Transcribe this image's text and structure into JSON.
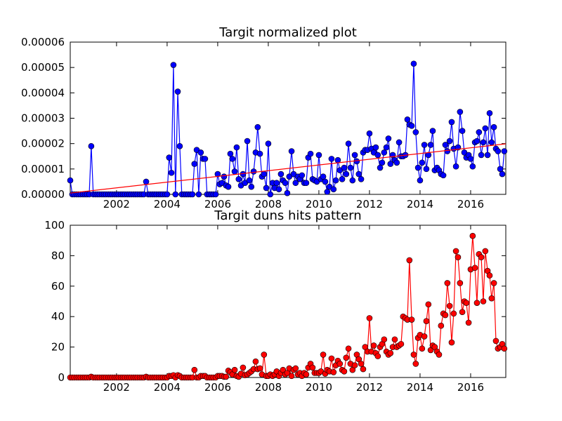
{
  "chart_data": [
    {
      "type": "line",
      "title": "Targit normalized plot",
      "color": "#0000ff",
      "xlim": [
        2000.17,
        2017.39
      ],
      "xticks": [
        2002,
        2004,
        2006,
        2008,
        2010,
        2012,
        2014,
        2016
      ],
      "ylim": [
        0,
        6e-05
      ],
      "yticks": [
        {
          "value": 0,
          "label": "0.00000"
        },
        {
          "value": 1e-05,
          "label": "0.00001"
        },
        {
          "value": 2e-05,
          "label": "0.00002"
        },
        {
          "value": 3e-05,
          "label": "0.00003"
        },
        {
          "value": 4e-05,
          "label": "0.00004"
        },
        {
          "value": 5e-05,
          "label": "0.00005"
        },
        {
          "value": 6e-05,
          "label": "0.00006"
        }
      ],
      "x": [
        2000.17,
        2000.25,
        2000.33,
        2000.42,
        2000.5,
        2000.58,
        2000.67,
        2000.75,
        2000.83,
        2000.92,
        2001,
        2001.08,
        2001.17,
        2001.25,
        2001.33,
        2001.42,
        2001.5,
        2001.58,
        2001.67,
        2001.75,
        2001.83,
        2001.92,
        2002,
        2002.08,
        2002.17,
        2002.25,
        2002.33,
        2002.42,
        2002.5,
        2002.58,
        2002.67,
        2002.75,
        2002.83,
        2002.92,
        2003,
        2003.08,
        2003.17,
        2003.25,
        2003.33,
        2003.42,
        2003.5,
        2003.58,
        2003.67,
        2003.75,
        2003.83,
        2003.92,
        2004,
        2004.08,
        2004.17,
        2004.25,
        2004.33,
        2004.42,
        2004.5,
        2004.58,
        2004.67,
        2004.75,
        2004.83,
        2004.92,
        2005,
        2005.08,
        2005.17,
        2005.25,
        2005.33,
        2005.42,
        2005.5,
        2005.58,
        2005.67,
        2005.75,
        2005.83,
        2005.92,
        2006,
        2006.08,
        2006.17,
        2006.25,
        2006.33,
        2006.42,
        2006.5,
        2006.58,
        2006.67,
        2006.75,
        2006.83,
        2006.92,
        2007,
        2007.08,
        2007.17,
        2007.25,
        2007.33,
        2007.42,
        2007.5,
        2007.58,
        2007.67,
        2007.75,
        2007.83,
        2007.92,
        2008,
        2008.08,
        2008.17,
        2008.25,
        2008.33,
        2008.42,
        2008.5,
        2008.58,
        2008.67,
        2008.75,
        2008.83,
        2008.92,
        2009,
        2009.08,
        2009.17,
        2009.25,
        2009.33,
        2009.42,
        2009.5,
        2009.58,
        2009.67,
        2009.75,
        2009.83,
        2009.92,
        2010,
        2010.08,
        2010.17,
        2010.25,
        2010.33,
        2010.42,
        2010.5,
        2010.58,
        2010.67,
        2010.75,
        2010.83,
        2010.92,
        2011,
        2011.08,
        2011.17,
        2011.25,
        2011.33,
        2011.42,
        2011.5,
        2011.58,
        2011.67,
        2011.75,
        2011.83,
        2011.92,
        2012,
        2012.08,
        2012.17,
        2012.25,
        2012.33,
        2012.42,
        2012.5,
        2012.58,
        2012.67,
        2012.75,
        2012.83,
        2012.92,
        2013,
        2013.08,
        2013.17,
        2013.25,
        2013.33,
        2013.42,
        2013.5,
        2013.58,
        2013.67,
        2013.75,
        2013.83,
        2013.92,
        2014,
        2014.08,
        2014.17,
        2014.25,
        2014.33,
        2014.42,
        2014.5,
        2014.58,
        2014.67,
        2014.75,
        2014.83,
        2014.92,
        2015,
        2015.08,
        2015.17,
        2015.25,
        2015.33,
        2015.42,
        2015.5,
        2015.58,
        2015.67,
        2015.75,
        2015.83,
        2015.92,
        2016,
        2016.08,
        2016.17,
        2016.25,
        2016.33,
        2016.42,
        2016.5,
        2016.58,
        2016.67,
        2016.75,
        2016.83,
        2016.92,
        2017,
        2017.08,
        2017.17,
        2017.25,
        2017.33
      ],
      "values": [
        5.5e-06,
        0,
        0,
        0,
        0,
        0,
        0,
        0,
        0,
        0,
        1.9e-05,
        0,
        0,
        0,
        0,
        0,
        0,
        0,
        0,
        0,
        0,
        0,
        0,
        0,
        0,
        0,
        0,
        0,
        0,
        0,
        0,
        0,
        0,
        0,
        0,
        0,
        5e-06,
        0,
        0,
        0,
        0,
        0,
        0,
        0,
        0,
        0,
        0,
        1.45e-05,
        8.5e-06,
        5.1e-05,
        0,
        4.05e-05,
        1.9e-05,
        0,
        0,
        0,
        0,
        0,
        0,
        1.2e-05,
        1.75e-05,
        0,
        1.65e-05,
        1.4e-05,
        1.4e-05,
        0,
        0,
        0,
        0,
        0,
        8e-06,
        4e-06,
        4.5e-06,
        7e-06,
        3.5e-06,
        3e-06,
        1.6e-05,
        1.4e-05,
        9e-06,
        1.85e-05,
        6e-06,
        3.5e-06,
        8e-06,
        4.5e-06,
        2.1e-05,
        5.5e-06,
        3e-06,
        9e-06,
        1.65e-05,
        2.65e-05,
        1.6e-05,
        7e-06,
        8e-06,
        2.5e-06,
        2e-05,
        0,
        4.5e-06,
        2.5e-06,
        4.5e-06,
        2e-06,
        8e-06,
        5.5e-06,
        4.5e-06,
        5e-07,
        7e-06,
        1.7e-05,
        8e-06,
        4.5e-06,
        7e-06,
        6e-06,
        7.5e-06,
        4.5e-06,
        4.5e-06,
        1.45e-05,
        1.6e-05,
        6e-06,
        5.5e-06,
        5e-06,
        1.55e-05,
        6e-06,
        7e-06,
        5e-06,
        1e-06,
        3e-06,
        1.4e-05,
        2e-06,
        5.5e-06,
        1.35e-05,
        9.5e-06,
        6e-06,
        1.05e-05,
        8e-06,
        2e-05,
        1.05e-05,
        5.5e-06,
        1.55e-05,
        1.3e-05,
        8e-06,
        6e-06,
        1.65e-05,
        1.75e-05,
        1.75e-05,
        2.4e-05,
        1.8e-05,
        1.65e-05,
        1.85e-05,
        1.55e-05,
        1.05e-05,
        1.25e-05,
        1.65e-05,
        1.85e-05,
        2.2e-05,
        1.2e-05,
        1.55e-05,
        1.35e-05,
        1.25e-05,
        2.05e-05,
        1.5e-05,
        1.5e-05,
        1.55e-05,
        2.95e-05,
        2.75e-05,
        2.7e-05,
        5.15e-05,
        2.45e-05,
        1.05e-05,
        5.5e-06,
        1.25e-05,
        1.95e-05,
        1e-05,
        1.55e-05,
        1.95e-05,
        2.5e-05,
        9.5e-06,
        1.05e-05,
        9.5e-06,
        8e-06,
        7.5e-06,
        1.95e-05,
        1.7e-05,
        2.1e-05,
        2.85e-05,
        1.8e-05,
        1.1e-05,
        1.85e-05,
        3.25e-05,
        2.5e-05,
        1.65e-05,
        1.45e-05,
        1.55e-05,
        1.4e-05,
        1.1e-05,
        2.05e-05,
        2.1e-05,
        2.45e-05,
        1.55e-05,
        2.05e-05,
        2.6e-05,
        1.55e-05,
        3.2e-05,
        2.05e-05,
        2.65e-05,
        1.8e-05,
        1.7e-05,
        1e-05,
        8e-06,
        1.7e-05
      ],
      "trend": {
        "x": [
          2000.17,
          2017.39
        ],
        "values": [
          5e-07,
          1.99e-05
        ],
        "color": "#ff0000"
      }
    },
    {
      "type": "line",
      "title": "Targit duns hits pattern",
      "color": "#ff0000",
      "xlim": [
        2000.17,
        2017.39
      ],
      "xticks": [
        2002,
        2004,
        2006,
        2008,
        2010,
        2012,
        2014,
        2016
      ],
      "ylim": [
        0,
        100
      ],
      "yticks": [
        0,
        20,
        40,
        60,
        80,
        100
      ],
      "x": [
        2000.17,
        2000.25,
        2000.33,
        2000.42,
        2000.5,
        2000.58,
        2000.67,
        2000.75,
        2000.83,
        2000.92,
        2001,
        2001.08,
        2001.17,
        2001.25,
        2001.33,
        2001.42,
        2001.5,
        2001.58,
        2001.67,
        2001.75,
        2001.83,
        2001.92,
        2002,
        2002.08,
        2002.17,
        2002.25,
        2002.33,
        2002.42,
        2002.5,
        2002.58,
        2002.67,
        2002.75,
        2002.83,
        2002.92,
        2003,
        2003.08,
        2003.17,
        2003.25,
        2003.33,
        2003.42,
        2003.5,
        2003.58,
        2003.67,
        2003.75,
        2003.83,
        2003.92,
        2004,
        2004.08,
        2004.17,
        2004.25,
        2004.33,
        2004.42,
        2004.5,
        2004.58,
        2004.67,
        2004.75,
        2004.83,
        2004.92,
        2005,
        2005.08,
        2005.17,
        2005.25,
        2005.33,
        2005.42,
        2005.5,
        2005.58,
        2005.67,
        2005.75,
        2005.83,
        2005.92,
        2006,
        2006.08,
        2006.17,
        2006.25,
        2006.33,
        2006.42,
        2006.5,
        2006.58,
        2006.67,
        2006.75,
        2006.83,
        2006.92,
        2007,
        2007.08,
        2007.17,
        2007.25,
        2007.33,
        2007.42,
        2007.5,
        2007.58,
        2007.67,
        2007.75,
        2007.83,
        2007.92,
        2008,
        2008.08,
        2008.17,
        2008.25,
        2008.33,
        2008.42,
        2008.5,
        2008.58,
        2008.67,
        2008.75,
        2008.83,
        2008.92,
        2009,
        2009.08,
        2009.17,
        2009.25,
        2009.33,
        2009.42,
        2009.5,
        2009.58,
        2009.67,
        2009.75,
        2009.83,
        2009.92,
        2010,
        2010.08,
        2010.17,
        2010.25,
        2010.33,
        2010.42,
        2010.5,
        2010.58,
        2010.67,
        2010.75,
        2010.83,
        2010.92,
        2011,
        2011.08,
        2011.17,
        2011.25,
        2011.33,
        2011.42,
        2011.5,
        2011.58,
        2011.67,
        2011.75,
        2011.83,
        2011.92,
        2012,
        2012.08,
        2012.17,
        2012.25,
        2012.33,
        2012.42,
        2012.5,
        2012.58,
        2012.67,
        2012.75,
        2012.83,
        2012.92,
        2013,
        2013.08,
        2013.17,
        2013.25,
        2013.33,
        2013.42,
        2013.5,
        2013.58,
        2013.67,
        2013.75,
        2013.83,
        2013.92,
        2014,
        2014.08,
        2014.17,
        2014.25,
        2014.33,
        2014.42,
        2014.5,
        2014.58,
        2014.67,
        2014.75,
        2014.83,
        2014.92,
        2015,
        2015.08,
        2015.17,
        2015.25,
        2015.33,
        2015.42,
        2015.5,
        2015.58,
        2015.67,
        2015.75,
        2015.83,
        2015.92,
        2016,
        2016.08,
        2016.17,
        2016.25,
        2016.33,
        2016.42,
        2016.5,
        2016.58,
        2016.67,
        2016.75,
        2016.83,
        2016.92,
        2017,
        2017.08,
        2017.17,
        2017.25,
        2017.33
      ],
      "values": [
        0,
        0,
        0,
        0,
        0,
        0,
        0,
        0,
        0,
        0,
        0.5,
        0,
        0,
        0,
        0,
        0,
        0,
        0,
        0,
        0,
        0,
        0,
        0,
        0,
        0,
        0,
        0,
        0,
        0,
        0,
        0,
        0,
        0,
        0,
        0,
        0,
        0.5,
        0,
        0,
        0,
        0,
        0,
        0,
        0,
        0,
        0,
        0,
        1,
        1,
        1.5,
        0,
        1.5,
        1,
        0,
        0,
        0,
        0,
        0,
        0,
        5,
        0,
        0,
        1,
        1,
        1,
        0,
        0,
        0,
        0,
        0,
        1,
        1,
        1,
        0.5,
        0.5,
        4.5,
        3.5,
        2,
        5,
        1,
        0.5,
        2.5,
        6.5,
        1.5,
        2,
        3,
        4,
        5.5,
        10.5,
        5.5,
        6,
        2,
        15,
        1,
        1,
        2,
        1,
        2,
        4,
        1,
        3,
        5,
        2,
        3,
        6,
        1,
        5,
        6,
        2,
        3,
        1,
        3,
        2,
        6.5,
        9,
        6.5,
        3,
        3,
        3,
        4,
        15,
        2.5,
        5,
        4,
        12.5,
        3.5,
        8,
        11,
        9,
        5,
        4,
        13,
        19,
        9,
        5,
        8,
        15,
        12,
        9,
        5.5,
        20,
        17,
        39,
        17,
        21,
        16,
        14,
        20,
        22,
        25,
        17,
        15,
        16,
        20,
        25,
        20,
        21,
        22,
        40,
        39,
        38,
        77,
        38,
        15,
        9,
        26,
        28,
        19,
        27,
        37,
        48,
        18,
        21,
        20,
        17,
        15,
        34,
        42,
        41,
        62,
        47,
        23,
        42,
        83,
        79,
        62,
        43,
        50,
        49,
        36,
        71,
        93,
        72,
        49,
        81,
        79,
        50,
        83,
        70,
        67,
        52,
        62,
        24,
        19,
        20,
        22,
        19
      ]
    }
  ]
}
